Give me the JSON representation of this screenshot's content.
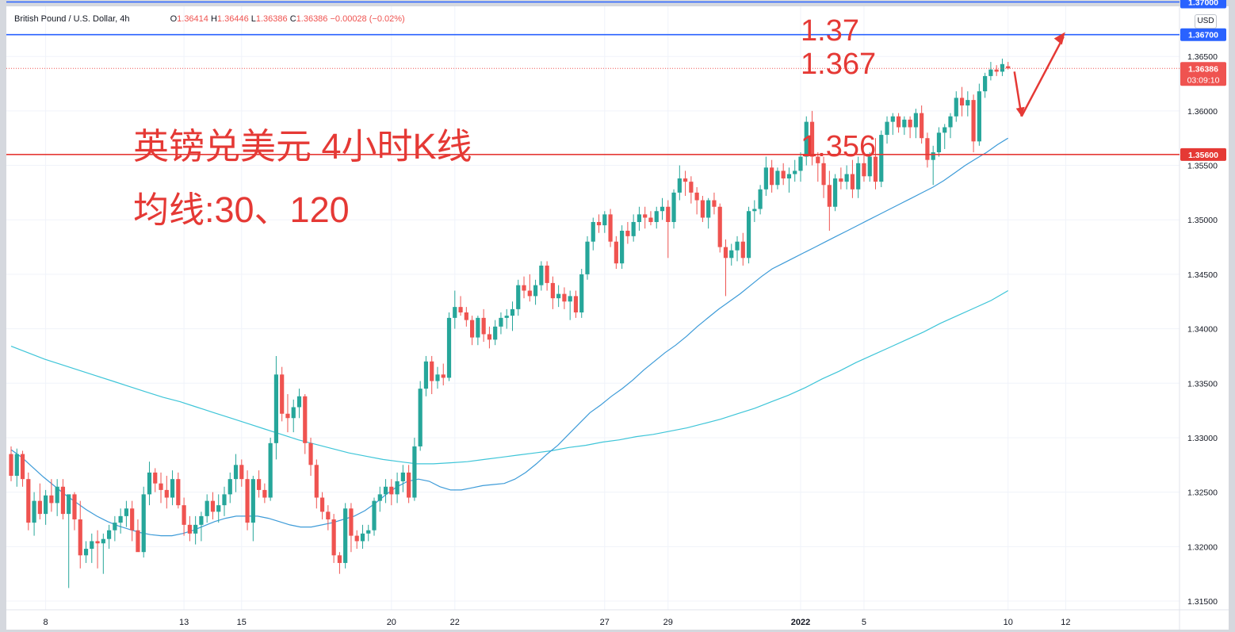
{
  "legend": {
    "symbol": "British Pound / U.S. Dollar, 4h",
    "ohlc_label_o": "O",
    "o": "1.36414",
    "ohlc_label_h": "H",
    "h": "1.36446",
    "ohlc_label_l": "L",
    "l": "1.36386",
    "ohlc_label_c": "C",
    "c": "1.36386",
    "change": "−0.00028 (−0.02%)"
  },
  "currency_button": "USD",
  "annotations": {
    "title": "英镑兑美元 4小时K线",
    "subtitle": "均线:30、120",
    "level_137": "1.37",
    "level_1367": "1.367",
    "level_1356": "1.356"
  },
  "colors": {
    "up": "#26a69a",
    "down": "#ef5350",
    "ma30": "#3d9bd8",
    "ma120": "#3ec5d8",
    "hline_blue": "#2962ff",
    "hline_red": "#e53935",
    "price_tag": "#ef5350",
    "arrow": "#e53935"
  },
  "chart_data": {
    "type": "candlestick",
    "interval": "4h",
    "x_tick_labels": [
      "8",
      "13",
      "15",
      "20",
      "22",
      "27",
      "29",
      "2022",
      "5",
      "10",
      "12"
    ],
    "y_tick_labels": [
      "1.36500",
      "1.36000",
      "1.35500",
      "1.35000",
      "1.34500",
      "1.34000",
      "1.33500",
      "1.33000",
      "1.32500",
      "1.32000",
      "1.31500"
    ],
    "ylim": [
      1.3142,
      1.3696
    ],
    "price_labels": {
      "top_line": "1.37000",
      "line_1367": "1.36700",
      "current_price": "1.36386",
      "countdown": "03:09:10",
      "line_1356": "1.35600"
    },
    "horizontal_lines": [
      {
        "price": 1.37,
        "color": "blue"
      },
      {
        "price": 1.367,
        "color": "blue"
      },
      {
        "price": 1.356,
        "color": "red"
      }
    ],
    "candles_ohlc": [
      [
        1.3285,
        1.3292,
        1.326,
        1.3265
      ],
      [
        1.3265,
        1.329,
        1.3255,
        1.3285
      ],
      [
        1.3285,
        1.3288,
        1.3255,
        1.3262
      ],
      [
        1.3262,
        1.3268,
        1.3215,
        1.3222
      ],
      [
        1.3222,
        1.325,
        1.321,
        1.3242
      ],
      [
        1.3242,
        1.3258,
        1.3225,
        1.323
      ],
      [
        1.323,
        1.3252,
        1.322,
        1.3247
      ],
      [
        1.3247,
        1.3262,
        1.3232,
        1.324
      ],
      [
        1.324,
        1.3262,
        1.3228,
        1.3255
      ],
      [
        1.3255,
        1.3262,
        1.3225,
        1.323
      ],
      [
        1.323,
        1.324,
        1.3162,
        1.3248
      ],
      [
        1.3248,
        1.325,
        1.3215,
        1.3225
      ],
      [
        1.3225,
        1.3242,
        1.318,
        1.3192
      ],
      [
        1.3192,
        1.3205,
        1.3185,
        1.3198
      ],
      [
        1.3198,
        1.3212,
        1.3185,
        1.3205
      ],
      [
        1.3205,
        1.3215,
        1.318,
        1.3203
      ],
      [
        1.3203,
        1.3212,
        1.3175,
        1.3207
      ],
      [
        1.3207,
        1.322,
        1.3198,
        1.3215
      ],
      [
        1.3215,
        1.3228,
        1.3205,
        1.3222
      ],
      [
        1.3222,
        1.3235,
        1.3212,
        1.3228
      ],
      [
        1.3228,
        1.3242,
        1.3218,
        1.3235
      ],
      [
        1.3235,
        1.3242,
        1.3205,
        1.3215
      ],
      [
        1.3215,
        1.3225,
        1.3198,
        1.3195
      ],
      [
        1.3195,
        1.3255,
        1.319,
        1.3248
      ],
      [
        1.3248,
        1.3278,
        1.3238,
        1.3268
      ],
      [
        1.3268,
        1.3272,
        1.325,
        1.3258
      ],
      [
        1.3258,
        1.3268,
        1.324,
        1.3252
      ],
      [
        1.3252,
        1.3265,
        1.3235,
        1.3245
      ],
      [
        1.3245,
        1.327,
        1.3238,
        1.3262
      ],
      [
        1.3262,
        1.3268,
        1.3235,
        1.3238
      ],
      [
        1.3238,
        1.3245,
        1.321,
        1.322
      ],
      [
        1.322,
        1.3228,
        1.3205,
        1.3212
      ],
      [
        1.3212,
        1.3228,
        1.3202,
        1.322
      ],
      [
        1.322,
        1.3232,
        1.3205,
        1.3228
      ],
      [
        1.3228,
        1.3248,
        1.3222,
        1.3242
      ],
      [
        1.3242,
        1.325,
        1.3225,
        1.3232
      ],
      [
        1.3232,
        1.3248,
        1.3222,
        1.3238
      ],
      [
        1.3238,
        1.3255,
        1.3228,
        1.3248
      ],
      [
        1.3248,
        1.3268,
        1.324,
        1.3262
      ],
      [
        1.3262,
        1.3285,
        1.325,
        1.3275
      ],
      [
        1.3275,
        1.328,
        1.3255,
        1.3262
      ],
      [
        1.3262,
        1.327,
        1.3215,
        1.3222
      ],
      [
        1.3222,
        1.3265,
        1.3205,
        1.3262
      ],
      [
        1.3262,
        1.327,
        1.3245,
        1.3252
      ],
      [
        1.3252,
        1.3258,
        1.324,
        1.3245
      ],
      [
        1.3245,
        1.33,
        1.3242,
        1.3295
      ],
      [
        1.3295,
        1.3375,
        1.328,
        1.3358
      ],
      [
        1.3358,
        1.3365,
        1.3315,
        1.3322
      ],
      [
        1.3322,
        1.334,
        1.3305,
        1.3318
      ],
      [
        1.3318,
        1.3335,
        1.3305,
        1.3328
      ],
      [
        1.3328,
        1.3345,
        1.3318,
        1.3338
      ],
      [
        1.3338,
        1.334,
        1.3285,
        1.3295
      ],
      [
        1.3295,
        1.33,
        1.3265,
        1.3275
      ],
      [
        1.3275,
        1.328,
        1.3235,
        1.3245
      ],
      [
        1.3245,
        1.325,
        1.3225,
        1.3232
      ],
      [
        1.3232,
        1.3238,
        1.3215,
        1.3225
      ],
      [
        1.3225,
        1.323,
        1.3185,
        1.3192
      ],
      [
        1.3192,
        1.3195,
        1.3175,
        1.3185
      ],
      [
        1.3185,
        1.324,
        1.318,
        1.3235
      ],
      [
        1.3235,
        1.324,
        1.3195,
        1.321
      ],
      [
        1.321,
        1.3215,
        1.3198,
        1.3205
      ],
      [
        1.3205,
        1.322,
        1.3198,
        1.3212
      ],
      [
        1.3212,
        1.322,
        1.3205,
        1.3215
      ],
      [
        1.3215,
        1.3245,
        1.321,
        1.3242
      ],
      [
        1.3242,
        1.3255,
        1.3232,
        1.3248
      ],
      [
        1.3248,
        1.3262,
        1.324,
        1.3255
      ],
      [
        1.3255,
        1.3262,
        1.3238,
        1.3248
      ],
      [
        1.3248,
        1.3268,
        1.324,
        1.326
      ],
      [
        1.326,
        1.3275,
        1.325,
        1.3268
      ],
      [
        1.3268,
        1.3275,
        1.324,
        1.3245
      ],
      [
        1.3245,
        1.33,
        1.3242,
        1.3292
      ],
      [
        1.3292,
        1.3352,
        1.3288,
        1.3345
      ],
      [
        1.3345,
        1.3375,
        1.3338,
        1.337
      ],
      [
        1.337,
        1.3375,
        1.334,
        1.3352
      ],
      [
        1.3352,
        1.3365,
        1.3345,
        1.3358
      ],
      [
        1.3358,
        1.3368,
        1.3348,
        1.3355
      ],
      [
        1.3355,
        1.3415,
        1.3352,
        1.341
      ],
      [
        1.341,
        1.3435,
        1.34,
        1.342
      ],
      [
        1.342,
        1.343,
        1.3412,
        1.3415
      ],
      [
        1.3415,
        1.342,
        1.3402,
        1.3408
      ],
      [
        1.3408,
        1.3412,
        1.3385,
        1.3392
      ],
      [
        1.3392,
        1.3412,
        1.3385,
        1.341
      ],
      [
        1.341,
        1.3418,
        1.3388,
        1.3395
      ],
      [
        1.3395,
        1.3402,
        1.3382,
        1.339
      ],
      [
        1.339,
        1.3408,
        1.3385,
        1.3402
      ],
      [
        1.3402,
        1.3415,
        1.3395,
        1.341
      ],
      [
        1.341,
        1.3418,
        1.34,
        1.3412
      ],
      [
        1.3412,
        1.3425,
        1.3398,
        1.3418
      ],
      [
        1.3418,
        1.3445,
        1.3412,
        1.344
      ],
      [
        1.344,
        1.3448,
        1.3428,
        1.3435
      ],
      [
        1.3435,
        1.345,
        1.3425,
        1.343
      ],
      [
        1.343,
        1.3445,
        1.3422,
        1.344
      ],
      [
        1.344,
        1.3462,
        1.3435,
        1.3458
      ],
      [
        1.3458,
        1.3462,
        1.3435,
        1.3442
      ],
      [
        1.3442,
        1.3448,
        1.3418,
        1.3428
      ],
      [
        1.3428,
        1.344,
        1.342,
        1.3432
      ],
      [
        1.3432,
        1.3438,
        1.3418,
        1.3425
      ],
      [
        1.3425,
        1.3435,
        1.3408,
        1.343
      ],
      [
        1.343,
        1.3435,
        1.341,
        1.3415
      ],
      [
        1.3415,
        1.3455,
        1.341,
        1.345
      ],
      [
        1.345,
        1.3485,
        1.3445,
        1.348
      ],
      [
        1.348,
        1.3502,
        1.3472,
        1.3498
      ],
      [
        1.3498,
        1.3505,
        1.3488,
        1.3495
      ],
      [
        1.3495,
        1.3508,
        1.3488,
        1.3505
      ],
      [
        1.3505,
        1.351,
        1.3475,
        1.348
      ],
      [
        1.348,
        1.3485,
        1.3455,
        1.346
      ],
      [
        1.346,
        1.3495,
        1.3455,
        1.349
      ],
      [
        1.349,
        1.3498,
        1.3478,
        1.3485
      ],
      [
        1.3485,
        1.3505,
        1.348,
        1.3498
      ],
      [
        1.3498,
        1.3512,
        1.349,
        1.3505
      ],
      [
        1.3505,
        1.3512,
        1.3492,
        1.3502
      ],
      [
        1.3502,
        1.3508,
        1.3495,
        1.3498
      ],
      [
        1.3498,
        1.3512,
        1.3492,
        1.3508
      ],
      [
        1.3508,
        1.352,
        1.35,
        1.3512
      ],
      [
        1.3512,
        1.3518,
        1.3465,
        1.3498
      ],
      [
        1.3498,
        1.3528,
        1.3492,
        1.3525
      ],
      [
        1.3525,
        1.355,
        1.3518,
        1.3538
      ],
      [
        1.3538,
        1.3545,
        1.3522,
        1.3535
      ],
      [
        1.3535,
        1.354,
        1.3515,
        1.3525
      ],
      [
        1.3525,
        1.353,
        1.3505,
        1.3518
      ],
      [
        1.3518,
        1.3522,
        1.3498,
        1.3502
      ],
      [
        1.3502,
        1.352,
        1.3492,
        1.3518
      ],
      [
        1.3518,
        1.3525,
        1.3505,
        1.3512
      ],
      [
        1.3512,
        1.3515,
        1.347,
        1.3475
      ],
      [
        1.3475,
        1.3482,
        1.343,
        1.3465
      ],
      [
        1.3465,
        1.3478,
        1.3458,
        1.3472
      ],
      [
        1.3472,
        1.3485,
        1.3462,
        1.348
      ],
      [
        1.348,
        1.3488,
        1.3458,
        1.3465
      ],
      [
        1.3465,
        1.3512,
        1.346,
        1.3508
      ],
      [
        1.3508,
        1.3518,
        1.3498,
        1.351
      ],
      [
        1.351,
        1.3532,
        1.3505,
        1.3528
      ],
      [
        1.3528,
        1.3558,
        1.3522,
        1.3548
      ],
      [
        1.3548,
        1.3555,
        1.3525,
        1.3532
      ],
      [
        1.3532,
        1.3548,
        1.3528,
        1.3545
      ],
      [
        1.3545,
        1.3552,
        1.3532,
        1.3538
      ],
      [
        1.3538,
        1.3548,
        1.3525,
        1.3542
      ],
      [
        1.3542,
        1.3555,
        1.3535,
        1.3545
      ],
      [
        1.3545,
        1.3562,
        1.3535,
        1.3558
      ],
      [
        1.3558,
        1.3595,
        1.355,
        1.359
      ],
      [
        1.359,
        1.36,
        1.355,
        1.3558
      ],
      [
        1.3558,
        1.3562,
        1.3535,
        1.3552
      ],
      [
        1.3552,
        1.3558,
        1.352,
        1.3532
      ],
      [
        1.3532,
        1.3545,
        1.349,
        1.3512
      ],
      [
        1.3512,
        1.3542,
        1.3508,
        1.3538
      ],
      [
        1.3538,
        1.3548,
        1.3528,
        1.3535
      ],
      [
        1.3535,
        1.355,
        1.3528,
        1.3542
      ],
      [
        1.3542,
        1.3555,
        1.352,
        1.3528
      ],
      [
        1.3528,
        1.3558,
        1.352,
        1.3552
      ],
      [
        1.3552,
        1.3562,
        1.3535,
        1.354
      ],
      [
        1.354,
        1.3562,
        1.3535,
        1.3558
      ],
      [
        1.3558,
        1.3575,
        1.3528,
        1.3535
      ],
      [
        1.3535,
        1.3582,
        1.353,
        1.3578
      ],
      [
        1.3578,
        1.3595,
        1.357,
        1.359
      ],
      [
        1.359,
        1.3598,
        1.3578,
        1.3595
      ],
      [
        1.3595,
        1.3598,
        1.358,
        1.3585
      ],
      [
        1.3585,
        1.3595,
        1.3578,
        1.3592
      ],
      [
        1.3592,
        1.3595,
        1.3575,
        1.3585
      ],
      [
        1.3585,
        1.3602,
        1.3575,
        1.3598
      ],
      [
        1.3598,
        1.3605,
        1.357,
        1.3575
      ],
      [
        1.3575,
        1.358,
        1.3548,
        1.3555
      ],
      [
        1.3555,
        1.3568,
        1.3532,
        1.3562
      ],
      [
        1.3562,
        1.3585,
        1.3558,
        1.358
      ],
      [
        1.358,
        1.3588,
        1.3565,
        1.3585
      ],
      [
        1.3585,
        1.3598,
        1.3575,
        1.3595
      ],
      [
        1.3595,
        1.3618,
        1.359,
        1.3612
      ],
      [
        1.3612,
        1.3622,
        1.3595,
        1.3605
      ],
      [
        1.3605,
        1.3618,
        1.3595,
        1.361
      ],
      [
        1.361,
        1.3615,
        1.3562,
        1.3572
      ],
      [
        1.3572,
        1.3625,
        1.3568,
        1.3618
      ],
      [
        1.3618,
        1.3635,
        1.3612,
        1.3632
      ],
      [
        1.3632,
        1.3645,
        1.3628,
        1.3638
      ],
      [
        1.3638,
        1.3642,
        1.3632,
        1.3636
      ],
      [
        1.3636,
        1.3648,
        1.3632,
        1.3643
      ],
      [
        1.3641,
        1.3645,
        1.3638,
        1.3639
      ]
    ],
    "ma30": [
      1.3289,
      1.3282,
      1.3273,
      1.3264,
      1.3256,
      1.3248,
      1.3241,
      1.3234,
      1.3228,
      1.3223,
      1.3219,
      1.3216,
      1.3213,
      1.3211,
      1.321,
      1.321,
      1.3212,
      1.3215,
      1.3219,
      1.3223,
      1.3226,
      1.3228,
      1.3228,
      1.3228,
      1.3226,
      1.3223,
      1.322,
      1.3218,
      1.3218,
      1.322,
      1.3222,
      1.3225,
      1.3228,
      1.3233,
      1.324,
      1.3248,
      1.3255,
      1.326,
      1.3262,
      1.326,
      1.3255,
      1.3252,
      1.3252,
      1.3254,
      1.3256,
      1.3257,
      1.3258,
      1.3262,
      1.3268,
      1.3276,
      1.3285,
      1.3293,
      1.3303,
      1.3313,
      1.3323,
      1.333,
      1.3338,
      1.3345,
      1.3353,
      1.3362,
      1.337,
      1.3378,
      1.3385,
      1.3393,
      1.3402,
      1.341,
      1.3418,
      1.3425,
      1.3432,
      1.344,
      1.3448,
      1.3455,
      1.346,
      1.3465,
      1.347,
      1.3475,
      1.348,
      1.3485,
      1.349,
      1.3495,
      1.35,
      1.3505,
      1.351,
      1.3515,
      1.352,
      1.3525,
      1.353,
      1.3536,
      1.3543,
      1.355,
      1.3556,
      1.3562,
      1.3569,
      1.3575
    ],
    "ma120": [
      1.3384,
      1.3378,
      1.3372,
      1.3367,
      1.3362,
      1.3357,
      1.3352,
      1.3347,
      1.3342,
      1.3337,
      1.3333,
      1.3328,
      1.3323,
      1.3318,
      1.3313,
      1.3308,
      1.3303,
      1.3298,
      1.3294,
      1.329,
      1.3286,
      1.3283,
      1.328,
      1.3278,
      1.3276,
      1.3276,
      1.3277,
      1.3278,
      1.328,
      1.3282,
      1.3284,
      1.3286,
      1.3288,
      1.3291,
      1.3293,
      1.3296,
      1.3298,
      1.3301,
      1.3303,
      1.3306,
      1.3309,
      1.3313,
      1.3317,
      1.3322,
      1.3327,
      1.3333,
      1.3339,
      1.3346,
      1.3354,
      1.3361,
      1.3369,
      1.3376,
      1.3383,
      1.339,
      1.3397,
      1.3405,
      1.3412,
      1.3419,
      1.3426,
      1.3435
    ],
    "x_tick_candle_index": [
      6,
      30,
      40,
      66,
      77,
      103,
      114,
      137,
      148,
      173,
      183
    ]
  }
}
